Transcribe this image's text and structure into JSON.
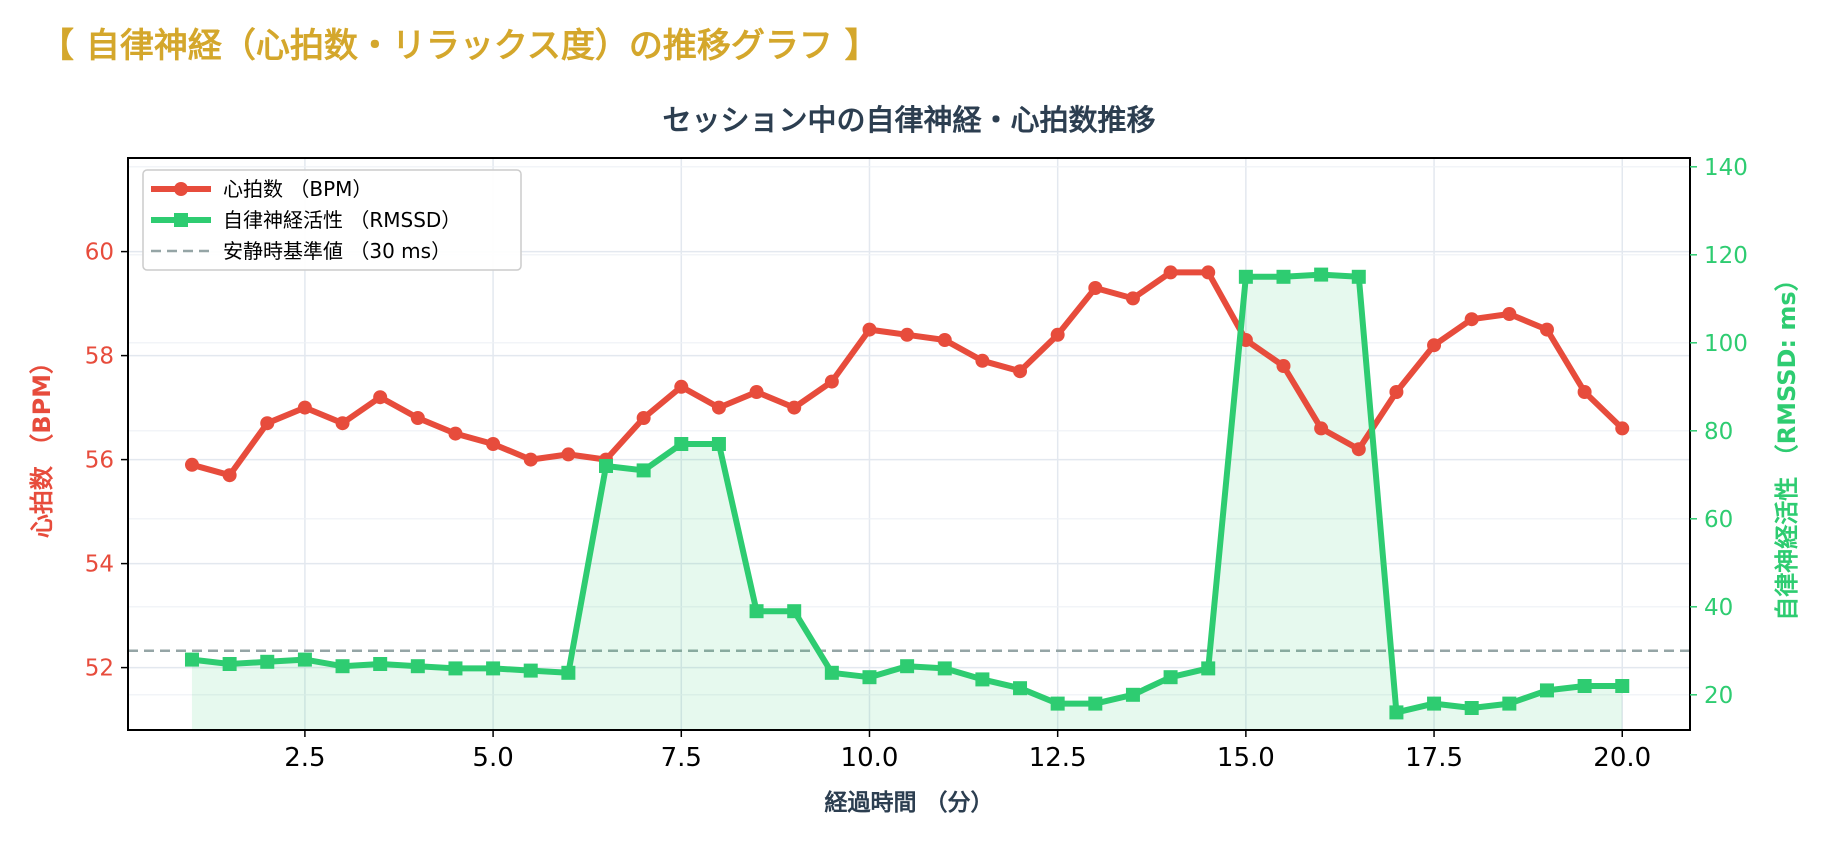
{
  "page": {
    "heading": "【 自律神経（心拍数・リラックス度）の推移グラフ 】"
  },
  "colors": {
    "heading": "#d4a72c",
    "heart_rate": "#e74c3c",
    "rmssd": "#2ecc71",
    "baseline": "#95a5a6",
    "title_text": "#2c3e50",
    "grid": "#e3e8ef"
  },
  "chart_data": {
    "type": "line",
    "title": "セッション中の自律神経・心拍数推移",
    "xlabel": "経過時間 （分）",
    "ylabel_left": "心拍数 （BPM）",
    "ylabel_right": "自律神経活性 （RMSSD: ms）",
    "xlim": [
      0.15,
      20.9
    ],
    "ylim_left": [
      50.8,
      61.8
    ],
    "ylim_right": [
      12,
      142
    ],
    "x_ticks": [
      2.5,
      5.0,
      7.5,
      10.0,
      12.5,
      15.0,
      17.5,
      20.0
    ],
    "x_tick_labels": [
      "2.5",
      "5.0",
      "7.5",
      "10.0",
      "12.5",
      "15.0",
      "17.5",
      "20.0"
    ],
    "y_left_ticks": [
      52,
      54,
      56,
      58,
      60
    ],
    "y_right_ticks": [
      20,
      40,
      60,
      80,
      100,
      120,
      140
    ],
    "grid": true,
    "legend_position": "top-left",
    "x": [
      1.0,
      1.5,
      2.0,
      2.5,
      3.0,
      3.5,
      4.0,
      4.5,
      5.0,
      5.5,
      6.0,
      6.5,
      7.0,
      7.5,
      8.0,
      8.5,
      9.0,
      9.5,
      10.0,
      10.5,
      11.0,
      11.5,
      12.0,
      12.5,
      13.0,
      13.5,
      14.0,
      14.5,
      15.0,
      15.5,
      16.0,
      16.5,
      17.0,
      17.5,
      18.0,
      18.5,
      19.0,
      19.5,
      20.0
    ],
    "series": [
      {
        "name": "心拍数 （BPM）",
        "axis": "left",
        "marker": "circle",
        "values": [
          55.9,
          55.7,
          56.7,
          57.0,
          56.7,
          57.2,
          56.8,
          56.5,
          56.3,
          56.0,
          56.1,
          56.0,
          56.8,
          57.4,
          57.0,
          57.3,
          57.0,
          57.5,
          58.5,
          58.4,
          58.3,
          57.9,
          57.7,
          58.4,
          59.3,
          59.1,
          59.6,
          59.6,
          58.3,
          57.8,
          56.6,
          56.2,
          57.3,
          58.2,
          58.7,
          58.8,
          58.5,
          57.3,
          56.6
        ]
      },
      {
        "name": "自律神経活性 （RMSSD）",
        "axis": "right",
        "marker": "square",
        "fill": true,
        "values": [
          28,
          27,
          27.5,
          28,
          26.5,
          27,
          26.5,
          26,
          26,
          25.5,
          25,
          72,
          71,
          77,
          77,
          39,
          39,
          25,
          24,
          26.5,
          26,
          23.5,
          21.5,
          18,
          18,
          20,
          24,
          26,
          115,
          115,
          115.5,
          115,
          16,
          18,
          17,
          18,
          21,
          22,
          22
        ]
      }
    ],
    "reference_line": {
      "name": "安静時基準値 （30 ms）",
      "axis": "right",
      "value": 30,
      "style": "dashed"
    }
  }
}
